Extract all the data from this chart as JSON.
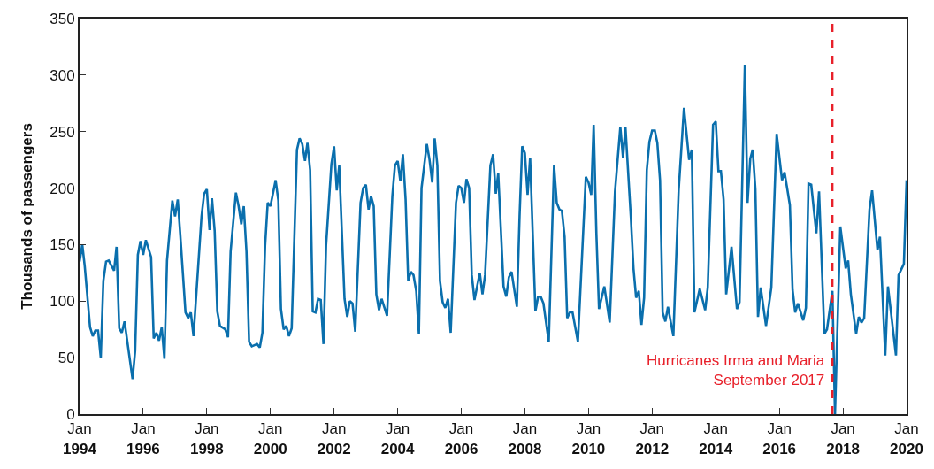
{
  "chart_data": {
    "type": "line",
    "ylabel": "Thousands of passengers",
    "xlim": [
      "1994-01",
      "2020-01"
    ],
    "xticks": [
      {
        "value": "1994-01",
        "label": "Jan\n1994"
      },
      {
        "value": "1996-01",
        "label": "Jan\n1996"
      },
      {
        "value": "1998-01",
        "label": "Jan\n1998"
      },
      {
        "value": "2000-01",
        "label": "Jan\n2000"
      },
      {
        "value": "2002-01",
        "label": "Jan\n2002"
      },
      {
        "value": "2004-01",
        "label": "Jan\n2004"
      },
      {
        "value": "2006-01",
        "label": "Jan\n2006"
      },
      {
        "value": "2008-01",
        "label": "Jan\n2008"
      },
      {
        "value": "2010-01",
        "label": "Jan\n2010"
      },
      {
        "value": "2012-01",
        "label": "Jan\n2012"
      },
      {
        "value": "2014-01",
        "label": "Jan\n2014"
      },
      {
        "value": "2016-01",
        "label": "Jan\n2016"
      },
      {
        "value": "2018-01",
        "label": "Jan\n2018"
      },
      {
        "value": "2020-01",
        "label": "Jan\n2020"
      }
    ],
    "ylim": [
      0,
      350
    ],
    "yticks": [
      0,
      50,
      100,
      150,
      200,
      250,
      300,
      350
    ],
    "grid": false,
    "marker": "none",
    "line_style": "solid",
    "ref_lines": [
      {
        "axis": "x",
        "value": "2017-09",
        "label": "Hurricanes Irma and Maria\nSeptember 2017",
        "color": "#e8202a",
        "line_style": "dashed"
      }
    ],
    "series": [
      {
        "color": "#0a6fad",
        "x": [
          "1994-01",
          "1994-02",
          "1994-03",
          "1994-05",
          "1994-06",
          "1994-07",
          "1994-08",
          "1994-09",
          "1994-10",
          "1994-11",
          "1994-12",
          "1995-02",
          "1995-03",
          "1995-04",
          "1995-05",
          "1995-06",
          "1995-09",
          "1995-10",
          "1995-11",
          "1995-12",
          "1996-01",
          "1996-02",
          "1996-04",
          "1996-05",
          "1996-06",
          "1996-07",
          "1996-08",
          "1996-09",
          "1996-10",
          "1996-12",
          "1997-01",
          "1997-02",
          "1997-03",
          "1997-05",
          "1997-06",
          "1997-07",
          "1997-08",
          "1997-11",
          "1997-12",
          "1998-01",
          "1998-02",
          "1998-03",
          "1998-04",
          "1998-05",
          "1998-06",
          "1998-08",
          "1998-09",
          "1998-10",
          "1998-12",
          "1999-01",
          "1999-02",
          "1999-03",
          "1999-04",
          "1999-05",
          "1999-06",
          "1999-08",
          "1999-09",
          "1999-10",
          "1999-11",
          "1999-12",
          "2000-01",
          "2000-03",
          "2000-04",
          "2000-05",
          "2000-06",
          "2000-07",
          "2000-08",
          "2000-09",
          "2000-11",
          "2000-12",
          "2001-01",
          "2001-02",
          "2001-03",
          "2001-04",
          "2001-05",
          "2001-06",
          "2001-07",
          "2001-08",
          "2001-09",
          "2001-10",
          "2001-12",
          "2002-01",
          "2002-02",
          "2002-03",
          "2002-05",
          "2002-06",
          "2002-07",
          "2002-08",
          "2002-09",
          "2002-11",
          "2002-12",
          "2003-01",
          "2003-02",
          "2003-03",
          "2003-04",
          "2003-05",
          "2003-06",
          "2003-07",
          "2003-09",
          "2003-11",
          "2003-12",
          "2004-01",
          "2004-02",
          "2004-03",
          "2004-04",
          "2004-05",
          "2004-06",
          "2004-07",
          "2004-08",
          "2004-09",
          "2004-10",
          "2004-12",
          "2005-01",
          "2005-02",
          "2005-03",
          "2005-04",
          "2005-05",
          "2005-06",
          "2005-07",
          "2005-08",
          "2005-09",
          "2005-11",
          "2005-12",
          "2006-01",
          "2006-02",
          "2006-03",
          "2006-04",
          "2006-05",
          "2006-06",
          "2006-08",
          "2006-09",
          "2006-10",
          "2006-12",
          "2007-01",
          "2007-02",
          "2007-03",
          "2007-05",
          "2007-06",
          "2007-07",
          "2007-08",
          "2007-10",
          "2007-11",
          "2007-12",
          "2008-01",
          "2008-02",
          "2008-03",
          "2008-05",
          "2008-06",
          "2008-07",
          "2008-08",
          "2008-10",
          "2008-12",
          "2009-01",
          "2009-02",
          "2009-03",
          "2009-04",
          "2009-05",
          "2009-06",
          "2009-07",
          "2009-09",
          "2009-12",
          "2010-01",
          "2010-02",
          "2010-03",
          "2010-04",
          "2010-05",
          "2010-07",
          "2010-09",
          "2010-11",
          "2011-01",
          "2011-02",
          "2011-03",
          "2011-05",
          "2011-06",
          "2011-07",
          "2011-08",
          "2011-09",
          "2011-10",
          "2011-11",
          "2011-12",
          "2012-01",
          "2012-02",
          "2012-03",
          "2012-04",
          "2012-05",
          "2012-06",
          "2012-07",
          "2012-09",
          "2012-11",
          "2013-01",
          "2013-03",
          "2013-04",
          "2013-05",
          "2013-07",
          "2013-09",
          "2013-10",
          "2013-12",
          "2014-01",
          "2014-02",
          "2014-03",
          "2014-04",
          "2014-05",
          "2014-07",
          "2014-09",
          "2014-10",
          "2014-12",
          "2015-01",
          "2015-02",
          "2015-03",
          "2015-04",
          "2015-05",
          "2015-06",
          "2015-08",
          "2015-10",
          "2015-12",
          "2016-02",
          "2016-03",
          "2016-05",
          "2016-06",
          "2016-07",
          "2016-08",
          "2016-10",
          "2016-11",
          "2016-12",
          "2017-01",
          "2017-03",
          "2017-04",
          "2017-06",
          "2017-07",
          "2017-09",
          "2017-10",
          "2017-12",
          "2018-02",
          "2018-03",
          "2018-04",
          "2018-06",
          "2018-07",
          "2018-08",
          "2018-09",
          "2018-11",
          "2018-12",
          "2019-02",
          "2019-03",
          "2019-05",
          "2019-06",
          "2019-09",
          "2019-10",
          "2019-12",
          "2020-01"
        ],
        "values": [
          135,
          150,
          131,
          77,
          69,
          74,
          74,
          50,
          118,
          135,
          136,
          127,
          148,
          76,
          72,
          82,
          31,
          56,
          141,
          153,
          141,
          154,
          139,
          67,
          72,
          65,
          77,
          49,
          136,
          189,
          175,
          190,
          160,
          90,
          85,
          90,
          69,
          175,
          195,
          199,
          163,
          191,
          162,
          91,
          78,
          75,
          68,
          144,
          196,
          184,
          168,
          184,
          144,
          64,
          60,
          62,
          59,
          72,
          149,
          187,
          184,
          207,
          189,
          93,
          75,
          78,
          69,
          76,
          234,
          244,
          239,
          224,
          240,
          216,
          91,
          90,
          102,
          101,
          62,
          149,
          221,
          237,
          198,
          220,
          102,
          86,
          100,
          98,
          73,
          187,
          200,
          203,
          181,
          193,
          184,
          106,
          92,
          102,
          87,
          193,
          220,
          224,
          206,
          230,
          190,
          118,
          126,
          123,
          109,
          71,
          200,
          239,
          225,
          205,
          244,
          220,
          118,
          99,
          94,
          102,
          72,
          187,
          202,
          200,
          187,
          208,
          200,
          123,
          101,
          125,
          106,
          123,
          220,
          230,
          195,
          213,
          113,
          104,
          121,
          126,
          95,
          175,
          237,
          231,
          194,
          227,
          91,
          104,
          104,
          98,
          64,
          220,
          187,
          181,
          180,
          157,
          85,
          90,
          90,
          64,
          210,
          205,
          194,
          256,
          160,
          93,
          113,
          81,
          197,
          254,
          227,
          254,
          175,
          129,
          103,
          109,
          79,
          103,
          216,
          241,
          251,
          251,
          240,
          207,
          90,
          82,
          95,
          69,
          198,
          271,
          225,
          234,
          90,
          111,
          92,
          112,
          256,
          259,
          215,
          215,
          190,
          106,
          148,
          93,
          99,
          309,
          187,
          226,
          234,
          199,
          86,
          112,
          78,
          112,
          248,
          207,
          214,
          185,
          110,
          90,
          98,
          83,
          94,
          204,
          203,
          160,
          197,
          71,
          75,
          109,
          0,
          166,
          129,
          136,
          106,
          71,
          86,
          81,
          85,
          181,
          198,
          145,
          157,
          52,
          113,
          52,
          123,
          133,
          207
        ]
      }
    ]
  }
}
